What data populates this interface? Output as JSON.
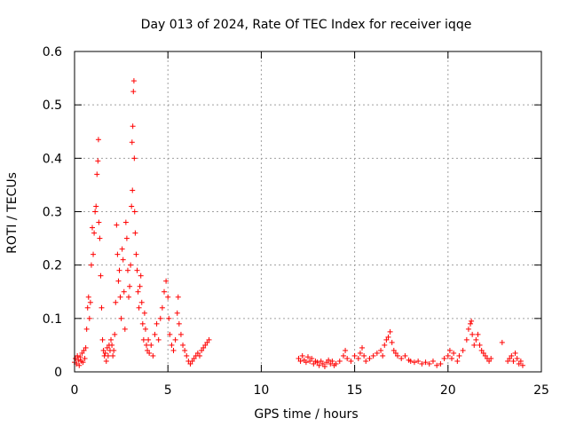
{
  "chart_data": {
    "type": "scatter",
    "title": "Day 013 of 2024, Rate Of TEC Index for receiver iqqe",
    "xlabel": "GPS time / hours",
    "ylabel": "ROTI / TECUs",
    "xlim": [
      0,
      25
    ],
    "ylim": [
      0,
      0.6
    ],
    "xticks": [
      "0",
      "5",
      "10",
      "15",
      "20",
      "25"
    ],
    "yticks": [
      "0",
      "0.1",
      "0.2",
      "0.3",
      "0.4",
      "0.5",
      "0.6"
    ],
    "grid": true,
    "marker": "+",
    "color": "#ff0000",
    "series": [
      {
        "points": [
          [
            0.0,
            0.018
          ],
          [
            0.05,
            0.025
          ],
          [
            0.1,
            0.015
          ],
          [
            0.15,
            0.03
          ],
          [
            0.2,
            0.022
          ],
          [
            0.25,
            0.012
          ],
          [
            0.3,
            0.028
          ],
          [
            0.35,
            0.02
          ],
          [
            0.4,
            0.035
          ],
          [
            0.45,
            0.018
          ],
          [
            0.5,
            0.04
          ],
          [
            0.55,
            0.025
          ],
          [
            0.6,
            0.045
          ],
          [
            0.65,
            0.08
          ],
          [
            0.7,
            0.12
          ],
          [
            0.75,
            0.14
          ],
          [
            0.8,
            0.1
          ],
          [
            0.85,
            0.13
          ],
          [
            0.9,
            0.2
          ],
          [
            0.95,
            0.27
          ],
          [
            1.0,
            0.22
          ],
          [
            1.05,
            0.26
          ],
          [
            1.1,
            0.3
          ],
          [
            1.15,
            0.31
          ],
          [
            1.2,
            0.37
          ],
          [
            1.25,
            0.395
          ],
          [
            1.28,
            0.435
          ],
          [
            1.3,
            0.28
          ],
          [
            1.35,
            0.25
          ],
          [
            1.4,
            0.18
          ],
          [
            1.45,
            0.12
          ],
          [
            1.5,
            0.06
          ],
          [
            1.55,
            0.04
          ],
          [
            1.6,
            0.03
          ],
          [
            1.65,
            0.035
          ],
          [
            1.7,
            0.02
          ],
          [
            1.75,
            0.045
          ],
          [
            1.8,
            0.03
          ],
          [
            1.85,
            0.05
          ],
          [
            1.9,
            0.04
          ],
          [
            1.95,
            0.06
          ],
          [
            2.0,
            0.05
          ],
          [
            2.05,
            0.03
          ],
          [
            2.1,
            0.04
          ],
          [
            2.15,
            0.07
          ],
          [
            2.2,
            0.13
          ],
          [
            2.25,
            0.275
          ],
          [
            2.3,
            0.22
          ],
          [
            2.35,
            0.17
          ],
          [
            2.4,
            0.19
          ],
          [
            2.45,
            0.14
          ],
          [
            2.5,
            0.1
          ],
          [
            2.55,
            0.23
          ],
          [
            2.6,
            0.21
          ],
          [
            2.65,
            0.15
          ],
          [
            2.7,
            0.08
          ],
          [
            2.75,
            0.28
          ],
          [
            2.8,
            0.25
          ],
          [
            2.85,
            0.19
          ],
          [
            2.9,
            0.14
          ],
          [
            2.95,
            0.16
          ],
          [
            3.0,
            0.2
          ],
          [
            3.05,
            0.31
          ],
          [
            3.08,
            0.43
          ],
          [
            3.1,
            0.34
          ],
          [
            3.12,
            0.46
          ],
          [
            3.15,
            0.525
          ],
          [
            3.18,
            0.545
          ],
          [
            3.2,
            0.4
          ],
          [
            3.22,
            0.3
          ],
          [
            3.25,
            0.26
          ],
          [
            3.3,
            0.22
          ],
          [
            3.35,
            0.19
          ],
          [
            3.4,
            0.15
          ],
          [
            3.45,
            0.12
          ],
          [
            3.5,
            0.16
          ],
          [
            3.55,
            0.18
          ],
          [
            3.6,
            0.13
          ],
          [
            3.65,
            0.09
          ],
          [
            3.7,
            0.06
          ],
          [
            3.75,
            0.11
          ],
          [
            3.8,
            0.08
          ],
          [
            3.85,
            0.05
          ],
          [
            3.9,
            0.04
          ],
          [
            3.95,
            0.06
          ],
          [
            4.0,
            0.035
          ],
          [
            4.1,
            0.05
          ],
          [
            4.2,
            0.03
          ],
          [
            4.3,
            0.07
          ],
          [
            4.4,
            0.09
          ],
          [
            4.5,
            0.06
          ],
          [
            4.6,
            0.1
          ],
          [
            4.7,
            0.12
          ],
          [
            4.8,
            0.15
          ],
          [
            4.9,
            0.17
          ],
          [
            5.0,
            0.14
          ],
          [
            5.05,
            0.1
          ],
          [
            5.1,
            0.07
          ],
          [
            5.2,
            0.05
          ],
          [
            5.3,
            0.04
          ],
          [
            5.4,
            0.06
          ],
          [
            5.5,
            0.11
          ],
          [
            5.55,
            0.14
          ],
          [
            5.6,
            0.09
          ],
          [
            5.7,
            0.07
          ],
          [
            5.8,
            0.05
          ],
          [
            5.9,
            0.04
          ],
          [
            6.0,
            0.03
          ],
          [
            6.1,
            0.02
          ],
          [
            6.2,
            0.015
          ],
          [
            6.3,
            0.02
          ],
          [
            6.4,
            0.025
          ],
          [
            6.5,
            0.03
          ],
          [
            6.6,
            0.035
          ],
          [
            6.7,
            0.03
          ],
          [
            6.8,
            0.04
          ],
          [
            6.9,
            0.045
          ],
          [
            7.0,
            0.05
          ],
          [
            7.1,
            0.055
          ],
          [
            7.2,
            0.06
          ],
          [
            12.0,
            0.025
          ],
          [
            12.1,
            0.02
          ],
          [
            12.2,
            0.03
          ],
          [
            12.3,
            0.022
          ],
          [
            12.4,
            0.018
          ],
          [
            12.5,
            0.028
          ],
          [
            12.6,
            0.02
          ],
          [
            12.7,
            0.025
          ],
          [
            12.8,
            0.015
          ],
          [
            12.9,
            0.02
          ],
          [
            13.0,
            0.018
          ],
          [
            13.1,
            0.012
          ],
          [
            13.2,
            0.02
          ],
          [
            13.3,
            0.015
          ],
          [
            13.4,
            0.01
          ],
          [
            13.5,
            0.018
          ],
          [
            13.6,
            0.022
          ],
          [
            13.7,
            0.015
          ],
          [
            13.8,
            0.02
          ],
          [
            13.9,
            0.012
          ],
          [
            14.0,
            0.015
          ],
          [
            14.2,
            0.02
          ],
          [
            14.4,
            0.03
          ],
          [
            14.5,
            0.04
          ],
          [
            14.6,
            0.025
          ],
          [
            14.8,
            0.02
          ],
          [
            15.0,
            0.03
          ],
          [
            15.2,
            0.025
          ],
          [
            15.3,
            0.035
          ],
          [
            15.4,
            0.045
          ],
          [
            15.5,
            0.03
          ],
          [
            15.6,
            0.02
          ],
          [
            15.8,
            0.025
          ],
          [
            16.0,
            0.03
          ],
          [
            16.2,
            0.035
          ],
          [
            16.4,
            0.04
          ],
          [
            16.5,
            0.03
          ],
          [
            16.6,
            0.05
          ],
          [
            16.7,
            0.06
          ],
          [
            16.8,
            0.065
          ],
          [
            16.9,
            0.075
          ],
          [
            17.0,
            0.055
          ],
          [
            17.1,
            0.04
          ],
          [
            17.2,
            0.035
          ],
          [
            17.3,
            0.03
          ],
          [
            17.5,
            0.025
          ],
          [
            17.7,
            0.03
          ],
          [
            17.9,
            0.022
          ],
          [
            18.0,
            0.02
          ],
          [
            18.2,
            0.018
          ],
          [
            18.4,
            0.02
          ],
          [
            18.6,
            0.015
          ],
          [
            18.8,
            0.018
          ],
          [
            19.0,
            0.015
          ],
          [
            19.2,
            0.02
          ],
          [
            19.4,
            0.012
          ],
          [
            19.6,
            0.015
          ],
          [
            19.8,
            0.025
          ],
          [
            20.0,
            0.03
          ],
          [
            20.1,
            0.04
          ],
          [
            20.2,
            0.025
          ],
          [
            20.3,
            0.035
          ],
          [
            20.5,
            0.02
          ],
          [
            20.6,
            0.03
          ],
          [
            20.8,
            0.04
          ],
          [
            21.0,
            0.06
          ],
          [
            21.1,
            0.08
          ],
          [
            21.2,
            0.09
          ],
          [
            21.25,
            0.095
          ],
          [
            21.3,
            0.07
          ],
          [
            21.4,
            0.05
          ],
          [
            21.5,
            0.06
          ],
          [
            21.6,
            0.07
          ],
          [
            21.7,
            0.05
          ],
          [
            21.8,
            0.04
          ],
          [
            21.9,
            0.035
          ],
          [
            22.0,
            0.03
          ],
          [
            22.1,
            0.025
          ],
          [
            22.2,
            0.02
          ],
          [
            22.3,
            0.025
          ],
          [
            22.9,
            0.055
          ],
          [
            23.2,
            0.02
          ],
          [
            23.3,
            0.025
          ],
          [
            23.4,
            0.03
          ],
          [
            23.5,
            0.02
          ],
          [
            23.6,
            0.035
          ],
          [
            23.7,
            0.025
          ],
          [
            23.8,
            0.015
          ],
          [
            23.9,
            0.02
          ],
          [
            24.0,
            0.012
          ]
        ]
      }
    ]
  }
}
